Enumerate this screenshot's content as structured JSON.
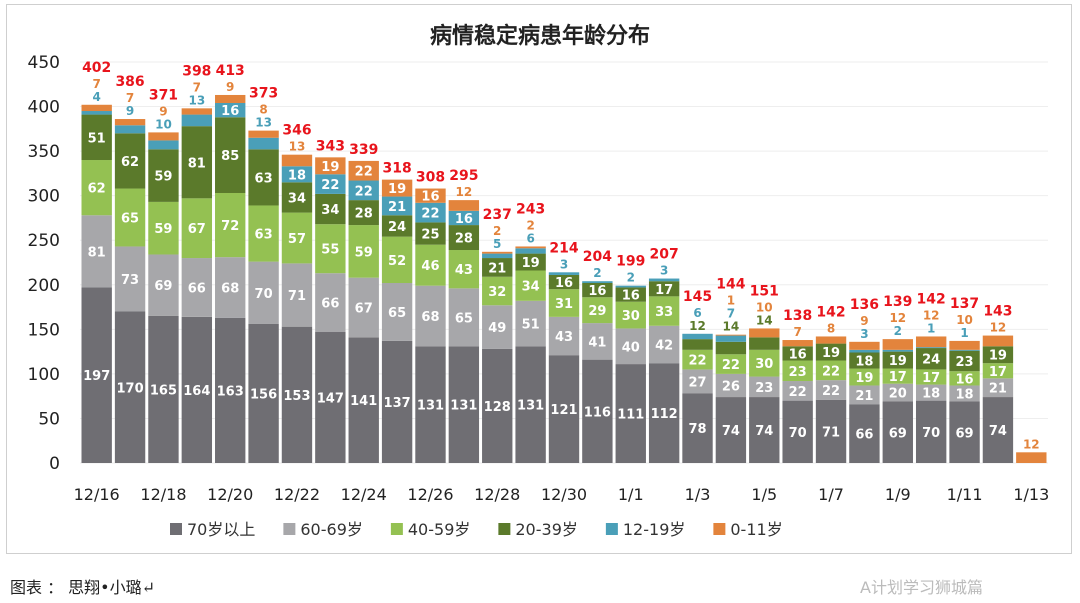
{
  "chart_data": {
    "type": "bar",
    "stacked": true,
    "title": "病情稳定病患年龄分布",
    "ylim": [
      0,
      450
    ],
    "yticks": [
      0,
      50,
      100,
      150,
      200,
      250,
      300,
      350,
      400,
      450
    ],
    "grid": true,
    "legend": "bottom",
    "categories": [
      "12/16",
      "12/17",
      "12/18",
      "12/19",
      "12/20",
      "12/21",
      "12/22",
      "12/23",
      "12/24",
      "12/25",
      "12/26",
      "12/27",
      "12/28",
      "12/29",
      "12/30",
      "12/31",
      "1/1",
      "1/2",
      "1/3",
      "1/4",
      "1/5",
      "1/6",
      "1/7",
      "1/8",
      "1/9",
      "1/10",
      "1/11",
      "1/12",
      "1/13"
    ],
    "xtick_labels": [
      "12/16",
      "12/18",
      "12/20",
      "12/22",
      "12/24",
      "12/26",
      "12/28",
      "12/30",
      "1/1",
      "1/3",
      "1/5",
      "1/7",
      "1/9",
      "1/11",
      "1/13"
    ],
    "series": [
      {
        "name": "70岁以上",
        "color": "#6f6e73",
        "values": [
          197,
          170,
          165,
          164,
          163,
          156,
          153,
          147,
          141,
          137,
          131,
          131,
          128,
          131,
          121,
          116,
          111,
          112,
          78,
          74,
          74,
          70,
          71,
          66,
          69,
          70,
          69,
          74,
          0
        ]
      },
      {
        "name": "60-69岁",
        "color": "#a7a7aa",
        "values": [
          81,
          73,
          69,
          66,
          68,
          70,
          71,
          66,
          67,
          65,
          68,
          65,
          49,
          51,
          43,
          41,
          40,
          42,
          27,
          26,
          23,
          22,
          22,
          21,
          20,
          18,
          18,
          21,
          0
        ]
      },
      {
        "name": "40-59岁",
        "color": "#94c152",
        "values": [
          62,
          65,
          59,
          67,
          72,
          63,
          57,
          55,
          59,
          52,
          46,
          43,
          32,
          34,
          31,
          29,
          30,
          33,
          22,
          22,
          30,
          23,
          22,
          19,
          17,
          17,
          16,
          17,
          0
        ]
      },
      {
        "name": "20-39岁",
        "color": "#5b7a2b",
        "values": [
          51,
          62,
          59,
          81,
          85,
          63,
          34,
          34,
          28,
          24,
          25,
          28,
          21,
          19,
          16,
          16,
          16,
          17,
          12,
          14,
          14,
          16,
          19,
          18,
          19,
          24,
          23,
          19,
          0
        ]
      },
      {
        "name": "12-19岁",
        "color": "#4a9fb8",
        "values": [
          4,
          9,
          10,
          13,
          16,
          13,
          18,
          22,
          22,
          21,
          22,
          16,
          5,
          6,
          3,
          2,
          2,
          3,
          6,
          7,
          0,
          0,
          0,
          3,
          2,
          1,
          1,
          0,
          0
        ]
      },
      {
        "name": "0-11岁",
        "color": "#e3843c",
        "values": [
          7,
          7,
          9,
          7,
          9,
          8,
          13,
          19,
          22,
          19,
          16,
          12,
          2,
          2,
          0,
          0,
          0,
          0,
          0,
          1,
          10,
          7,
          8,
          9,
          12,
          12,
          10,
          12,
          12
        ]
      }
    ],
    "totals": [
      402,
      386,
      371,
      398,
      413,
      373,
      346,
      343,
      339,
      318,
      308,
      295,
      237,
      243,
      214,
      204,
      199,
      207,
      145,
      144,
      151,
      138,
      142,
      136,
      139,
      142,
      137,
      143,
      null
    ],
    "annotation": "12"
  },
  "caption": "图表 ： 思翔•小璐↵",
  "watermark": "A计划学习狮城篇"
}
